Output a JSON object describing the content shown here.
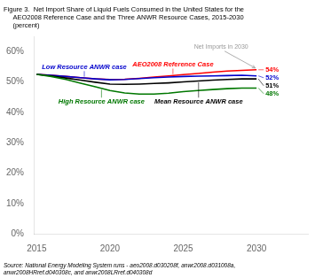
{
  "chart_data": {
    "type": "line",
    "title": "Figure 3.  Net Import Share of Liquid Fuels Consumed in the United States for the\n     AEO2008 Reference Case and the Three ANWR Resource Cases, 2015-2030\n     (percent)",
    "source": "Source: National Energy Modeling System runs - aeo2008.d030208f, anwr2008.d031008a,\nanwr2008HRref.d040308c, and anwr2008LRref.d040308d",
    "x": [
      2015,
      2016,
      2017,
      2018,
      2019,
      2020,
      2021,
      2022,
      2023,
      2024,
      2025,
      2026,
      2027,
      2028,
      2029,
      2030
    ],
    "series": [
      {
        "name": "High Resource ANWR case",
        "color": "#007700",
        "values": [
          52.5,
          51.8,
          50.8,
          49.6,
          48.4,
          47.2,
          46.4,
          46.0,
          46.0,
          46.3,
          46.8,
          47.2,
          47.5,
          47.8,
          48.0,
          48.0
        ],
        "value_labels": [
          null,
          null,
          null,
          null,
          null,
          null,
          null,
          null,
          null,
          null,
          null,
          null,
          null,
          null,
          null,
          "48%"
        ]
      },
      {
        "name": "Mean Resource ANWR case",
        "color": "#000000",
        "values": [
          52.5,
          52.0,
          51.3,
          50.6,
          49.9,
          49.3,
          49.2,
          49.3,
          49.5,
          49.7,
          50.0,
          50.3,
          50.6,
          50.8,
          51.0,
          51.0
        ],
        "value_labels": [
          null,
          null,
          null,
          null,
          null,
          null,
          null,
          null,
          null,
          null,
          null,
          null,
          null,
          null,
          null,
          "51%"
        ]
      },
      {
        "name": "Low Resource ANWR case",
        "color": "#0000cc",
        "values": [
          52.5,
          52.2,
          51.8,
          51.4,
          51.0,
          50.7,
          50.8,
          51.1,
          51.4,
          51.6,
          51.8,
          51.9,
          52.0,
          52.1,
          52.2,
          52.0
        ],
        "value_labels": [
          null,
          null,
          null,
          null,
          null,
          null,
          null,
          null,
          null,
          null,
          null,
          null,
          null,
          null,
          null,
          "52%"
        ]
      },
      {
        "name": "AEO2008 Reference Case",
        "color": "#ff0000",
        "values": [
          52.5,
          52.2,
          51.8,
          51.4,
          51.0,
          50.8,
          50.9,
          51.2,
          51.6,
          52.0,
          52.4,
          52.8,
          53.2,
          53.6,
          53.8,
          54.0
        ],
        "value_labels": [
          null,
          null,
          null,
          null,
          null,
          null,
          null,
          null,
          null,
          null,
          null,
          null,
          null,
          null,
          null,
          "54%"
        ]
      }
    ],
    "annotations": [
      {
        "text": "Net Imports in 2030",
        "x": 2030,
        "y": 54.0,
        "color": "#999999"
      }
    ],
    "xlim": [
      2014.8,
      2033.5
    ],
    "xticks": [
      2015,
      2020,
      2025,
      2030
    ],
    "ylim": [
      0,
      65
    ],
    "yticks": [
      {
        "value": 0,
        "label": "0%"
      },
      {
        "value": 10,
        "label": "10%"
      },
      {
        "value": 20,
        "label": "20%"
      },
      {
        "value": 30,
        "label": "30%"
      },
      {
        "value": 40,
        "label": "40%"
      },
      {
        "value": 50,
        "label": "50%"
      },
      {
        "value": 60,
        "label": "60%"
      }
    ],
    "grid": false
  }
}
